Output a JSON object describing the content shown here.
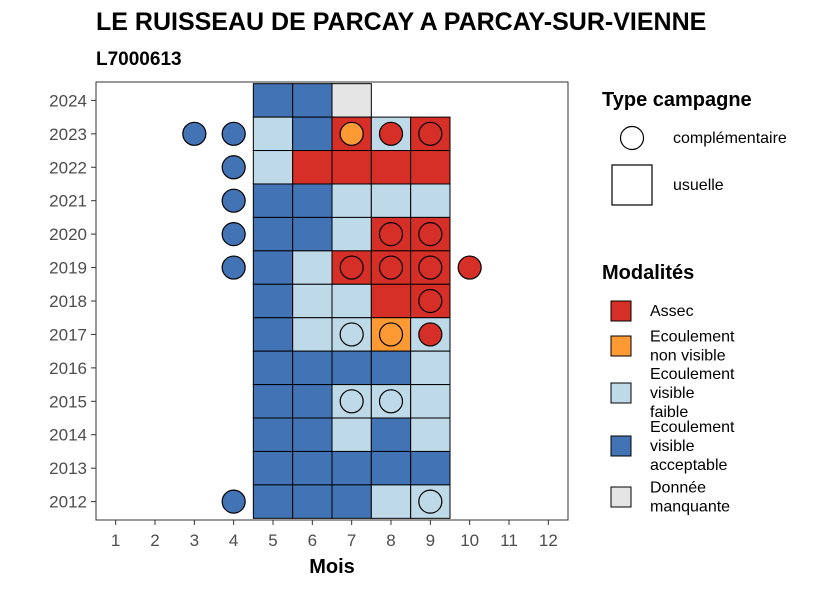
{
  "chart_data": {
    "type": "heatmap",
    "title": "LE RUISSEAU DE PARCAY A PARCAY-SUR-VIENNE",
    "subtitle": "L7000613",
    "xlabel": "Mois",
    "ylabel": "",
    "x_ticks": [
      "1",
      "2",
      "3",
      "4",
      "5",
      "6",
      "7",
      "8",
      "9",
      "10",
      "11",
      "12"
    ],
    "y_ticks": [
      "2012",
      "2013",
      "2014",
      "2015",
      "2016",
      "2017",
      "2018",
      "2019",
      "2020",
      "2021",
      "2022",
      "2023",
      "2024"
    ],
    "xlim": [
      0.5,
      12.5
    ],
    "ylim": [
      2011.45,
      2024.55
    ],
    "grid": false,
    "legend_position": "right",
    "modalities": [
      {
        "key": "assec",
        "label": [
          "Assec"
        ],
        "color": "#d62f27"
      },
      {
        "key": "nonvisible",
        "label": [
          "Ecoulement",
          "non visible"
        ],
        "color": "#fd9a34"
      },
      {
        "key": "faible",
        "label": [
          "Ecoulement",
          "visible",
          "faible"
        ],
        "color": "#bed9e8"
      },
      {
        "key": "acceptable",
        "label": [
          "Ecoulement",
          "visible",
          "acceptable"
        ],
        "color": "#4273b5"
      },
      {
        "key": "manquante",
        "label": [
          "Donnée",
          "manquante"
        ],
        "color": "#e5e5e5"
      }
    ],
    "campaign_types": [
      {
        "key": "complementaire",
        "label": "complémentaire",
        "shape": "circle"
      },
      {
        "key": "usuelle",
        "label": "usuelle",
        "shape": "square"
      }
    ],
    "legend_titles": {
      "type": "Type campagne",
      "modalites": "Modalités"
    },
    "usuelle": [
      {
        "year": 2024,
        "month": 5,
        "m": "acceptable"
      },
      {
        "year": 2024,
        "month": 6,
        "m": "acceptable"
      },
      {
        "year": 2024,
        "month": 7,
        "m": "manquante"
      },
      {
        "year": 2023,
        "month": 5,
        "m": "faible"
      },
      {
        "year": 2023,
        "month": 6,
        "m": "acceptable"
      },
      {
        "year": 2023,
        "month": 7,
        "m": "assec"
      },
      {
        "year": 2023,
        "month": 8,
        "m": "faible"
      },
      {
        "year": 2023,
        "month": 9,
        "m": "assec"
      },
      {
        "year": 2022,
        "month": 5,
        "m": "faible"
      },
      {
        "year": 2022,
        "month": 6,
        "m": "assec"
      },
      {
        "year": 2022,
        "month": 7,
        "m": "assec"
      },
      {
        "year": 2022,
        "month": 8,
        "m": "assec"
      },
      {
        "year": 2022,
        "month": 9,
        "m": "assec"
      },
      {
        "year": 2021,
        "month": 5,
        "m": "acceptable"
      },
      {
        "year": 2021,
        "month": 6,
        "m": "acceptable"
      },
      {
        "year": 2021,
        "month": 7,
        "m": "faible"
      },
      {
        "year": 2021,
        "month": 8,
        "m": "faible"
      },
      {
        "year": 2021,
        "month": 9,
        "m": "faible"
      },
      {
        "year": 2020,
        "month": 5,
        "m": "acceptable"
      },
      {
        "year": 2020,
        "month": 6,
        "m": "acceptable"
      },
      {
        "year": 2020,
        "month": 7,
        "m": "faible"
      },
      {
        "year": 2020,
        "month": 8,
        "m": "assec"
      },
      {
        "year": 2020,
        "month": 9,
        "m": "assec"
      },
      {
        "year": 2019,
        "month": 5,
        "m": "acceptable"
      },
      {
        "year": 2019,
        "month": 6,
        "m": "faible"
      },
      {
        "year": 2019,
        "month": 7,
        "m": "assec"
      },
      {
        "year": 2019,
        "month": 8,
        "m": "assec"
      },
      {
        "year": 2019,
        "month": 9,
        "m": "assec"
      },
      {
        "year": 2018,
        "month": 5,
        "m": "acceptable"
      },
      {
        "year": 2018,
        "month": 6,
        "m": "faible"
      },
      {
        "year": 2018,
        "month": 7,
        "m": "faible"
      },
      {
        "year": 2018,
        "month": 8,
        "m": "assec"
      },
      {
        "year": 2018,
        "month": 9,
        "m": "assec"
      },
      {
        "year": 2017,
        "month": 5,
        "m": "acceptable"
      },
      {
        "year": 2017,
        "month": 6,
        "m": "faible"
      },
      {
        "year": 2017,
        "month": 7,
        "m": "faible"
      },
      {
        "year": 2017,
        "month": 8,
        "m": "nonvisible"
      },
      {
        "year": 2017,
        "month": 9,
        "m": "faible"
      },
      {
        "year": 2016,
        "month": 5,
        "m": "acceptable"
      },
      {
        "year": 2016,
        "month": 6,
        "m": "acceptable"
      },
      {
        "year": 2016,
        "month": 7,
        "m": "acceptable"
      },
      {
        "year": 2016,
        "month": 8,
        "m": "acceptable"
      },
      {
        "year": 2016,
        "month": 9,
        "m": "faible"
      },
      {
        "year": 2015,
        "month": 5,
        "m": "acceptable"
      },
      {
        "year": 2015,
        "month": 6,
        "m": "acceptable"
      },
      {
        "year": 2015,
        "month": 7,
        "m": "faible"
      },
      {
        "year": 2015,
        "month": 8,
        "m": "faible"
      },
      {
        "year": 2015,
        "month": 9,
        "m": "faible"
      },
      {
        "year": 2014,
        "month": 5,
        "m": "acceptable"
      },
      {
        "year": 2014,
        "month": 6,
        "m": "acceptable"
      },
      {
        "year": 2014,
        "month": 7,
        "m": "faible"
      },
      {
        "year": 2014,
        "month": 8,
        "m": "acceptable"
      },
      {
        "year": 2014,
        "month": 9,
        "m": "faible"
      },
      {
        "year": 2013,
        "month": 5,
        "m": "acceptable"
      },
      {
        "year": 2013,
        "month": 6,
        "m": "acceptable"
      },
      {
        "year": 2013,
        "month": 7,
        "m": "acceptable"
      },
      {
        "year": 2013,
        "month": 8,
        "m": "acceptable"
      },
      {
        "year": 2013,
        "month": 9,
        "m": "acceptable"
      },
      {
        "year": 2012,
        "month": 5,
        "m": "acceptable"
      },
      {
        "year": 2012,
        "month": 6,
        "m": "acceptable"
      },
      {
        "year": 2012,
        "month": 7,
        "m": "acceptable"
      },
      {
        "year": 2012,
        "month": 8,
        "m": "faible"
      },
      {
        "year": 2012,
        "month": 9,
        "m": "faible"
      }
    ],
    "complementaire": [
      {
        "year": 2023,
        "month": 3,
        "m": "acceptable"
      },
      {
        "year": 2023,
        "month": 4,
        "m": "acceptable"
      },
      {
        "year": 2023,
        "month": 7,
        "m": "nonvisible"
      },
      {
        "year": 2023,
        "month": 8,
        "m": "assec"
      },
      {
        "year": 2023,
        "month": 9,
        "m": "assec"
      },
      {
        "year": 2022,
        "month": 4,
        "m": "acceptable"
      },
      {
        "year": 2021,
        "month": 4,
        "m": "acceptable"
      },
      {
        "year": 2020,
        "month": 4,
        "m": "acceptable"
      },
      {
        "year": 2020,
        "month": 8,
        "m": "assec"
      },
      {
        "year": 2020,
        "month": 9,
        "m": "assec"
      },
      {
        "year": 2019,
        "month": 4,
        "m": "acceptable"
      },
      {
        "year": 2019,
        "month": 7,
        "m": "assec"
      },
      {
        "year": 2019,
        "month": 8,
        "m": "assec"
      },
      {
        "year": 2019,
        "month": 9,
        "m": "assec"
      },
      {
        "year": 2019,
        "month": 10,
        "m": "assec"
      },
      {
        "year": 2018,
        "month": 9,
        "m": "assec"
      },
      {
        "year": 2017,
        "month": 7,
        "m": "faible"
      },
      {
        "year": 2017,
        "month": 8,
        "m": "nonvisible"
      },
      {
        "year": 2017,
        "month": 9,
        "m": "assec"
      },
      {
        "year": 2015,
        "month": 7,
        "m": "faible"
      },
      {
        "year": 2015,
        "month": 8,
        "m": "faible"
      },
      {
        "year": 2012,
        "month": 4,
        "m": "acceptable"
      },
      {
        "year": 2012,
        "month": 9,
        "m": "faible"
      }
    ]
  }
}
